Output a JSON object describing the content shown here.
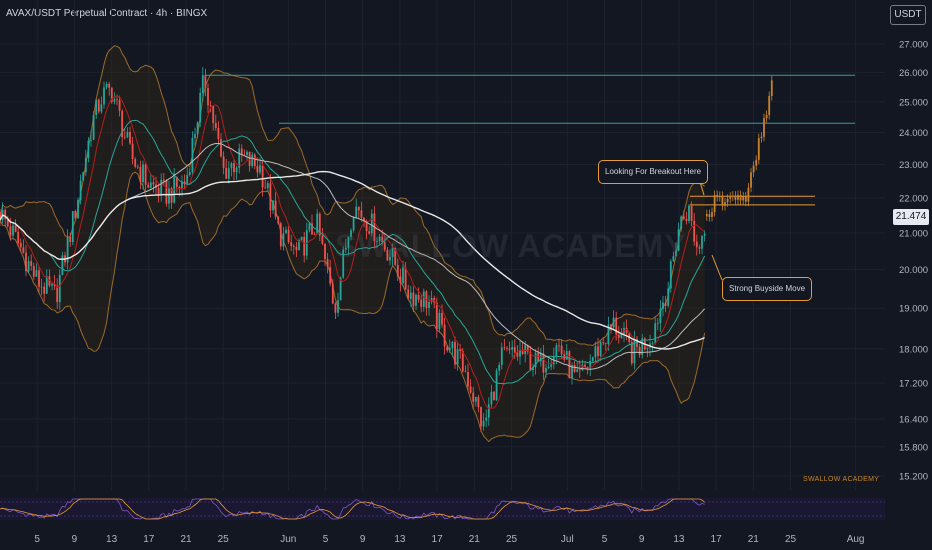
{
  "header": {
    "title": "AVAX/USDT Perpetual Contract · 4h · BINGX",
    "currency": "USDT"
  },
  "watermark": "SWALLOW ACADEMY",
  "brand_credit": "SWALLOW ACADEMY",
  "annotations": {
    "breakout": "Looking For Breakout Here",
    "buyside": "Strong Buyside Move"
  },
  "current_price": "21.474",
  "colors": {
    "background": "#131722",
    "up_candle": "#26a69a",
    "down_candle": "#ef5350",
    "projection": "#c8832a",
    "resistance_line": "#26a69a",
    "breakout_zone": "#e89a35",
    "bollinger": "#9c6a2a",
    "fast_ma": "#26a69a",
    "slow_ma": "#e8e8e8",
    "mid_ma": "#b71c1c",
    "oscillator_line": "#7e57c2",
    "oscillator_signal": "#e89a35"
  },
  "chart_data": {
    "type": "candlestick",
    "timeframe": "4h",
    "y_scale": "log",
    "y_ticks": [
      "27.000",
      "26.000",
      "25.000",
      "24.000",
      "23.000",
      "22.000",
      "21.000",
      "20.000",
      "19.000",
      "18.000",
      "17.200",
      "16.400",
      "15.800",
      "15.200"
    ],
    "x_ticks": [
      "5",
      "9",
      "13",
      "17",
      "21",
      "25",
      "Jun",
      "5",
      "9",
      "13",
      "17",
      "21",
      "25",
      "Jul",
      "5",
      "9",
      "13",
      "17",
      "21",
      "25",
      "Aug"
    ],
    "price_path": [
      {
        "t": "May 1",
        "price": 21.6
      },
      {
        "t": "May 3",
        "price": 20.7
      },
      {
        "t": "May 5",
        "price": 19.7
      },
      {
        "t": "May 7",
        "price": 19.3
      },
      {
        "t": "May 9",
        "price": 21.5
      },
      {
        "t": "May 11",
        "price": 24.4
      },
      {
        "t": "May 12",
        "price": 25.2
      },
      {
        "t": "May 13",
        "price": 25.4
      },
      {
        "t": "May 15",
        "price": 23.3
      },
      {
        "t": "May 17",
        "price": 22.4
      },
      {
        "t": "May 19",
        "price": 22.1
      },
      {
        "t": "May 21",
        "price": 22.5
      },
      {
        "t": "May 23",
        "price": 25.8
      },
      {
        "t": "May 25",
        "price": 22.8
      },
      {
        "t": "May 27",
        "price": 23.2
      },
      {
        "t": "May 29",
        "price": 22.9
      },
      {
        "t": "May 31",
        "price": 21.0
      },
      {
        "t": "Jun 2",
        "price": 20.4
      },
      {
        "t": "Jun 4",
        "price": 21.3
      },
      {
        "t": "Jun 6",
        "price": 19.0
      },
      {
        "t": "Jun 8",
        "price": 21.8
      },
      {
        "t": "Jun 10",
        "price": 21.2
      },
      {
        "t": "Jun 12",
        "price": 20.4
      },
      {
        "t": "Jun 14",
        "price": 19.4
      },
      {
        "t": "Jun 16",
        "price": 19.2
      },
      {
        "t": "Jun 18",
        "price": 18.2
      },
      {
        "t": "Jun 20",
        "price": 17.5
      },
      {
        "t": "Jun 22",
        "price": 16.2
      },
      {
        "t": "Jun 24",
        "price": 17.8
      },
      {
        "t": "Jun 26",
        "price": 17.9
      },
      {
        "t": "Jun 28",
        "price": 17.6
      },
      {
        "t": "Jun 30",
        "price": 18.1
      },
      {
        "t": "Jul 2",
        "price": 17.2
      },
      {
        "t": "Jul 4",
        "price": 17.9
      },
      {
        "t": "Jul 6",
        "price": 18.6
      },
      {
        "t": "Jul 8",
        "price": 17.9
      },
      {
        "t": "Jul 10",
        "price": 18.3
      },
      {
        "t": "Jul 12",
        "price": 19.7
      },
      {
        "t": "Jul 13",
        "price": 21.2
      },
      {
        "t": "Jul 14",
        "price": 21.7
      },
      {
        "t": "Jul 15",
        "price": 20.5
      },
      {
        "t": "Jul 16",
        "price": 21.47
      }
    ],
    "projection_path": [
      {
        "t": "Jul 16",
        "price": 21.47
      },
      {
        "t": "Jul 17",
        "price": 21.95
      },
      {
        "t": "Jul 18",
        "price": 21.85
      },
      {
        "t": "Jul 19",
        "price": 22.1
      },
      {
        "t": "Jul 20",
        "price": 21.9
      },
      {
        "t": "Jul 21",
        "price": 22.8
      },
      {
        "t": "Jul 22",
        "price": 24.2
      },
      {
        "t": "Jul 23",
        "price": 25.6
      }
    ],
    "resistance_levels": [
      {
        "price": 25.9,
        "from": "May 23",
        "to": "Jul 31"
      },
      {
        "price": 24.3,
        "from": "May 31",
        "to": "Jul 31"
      }
    ],
    "breakout_zone": [
      21.8,
      22.05
    ],
    "oscillator_range": [
      0,
      100
    ]
  }
}
